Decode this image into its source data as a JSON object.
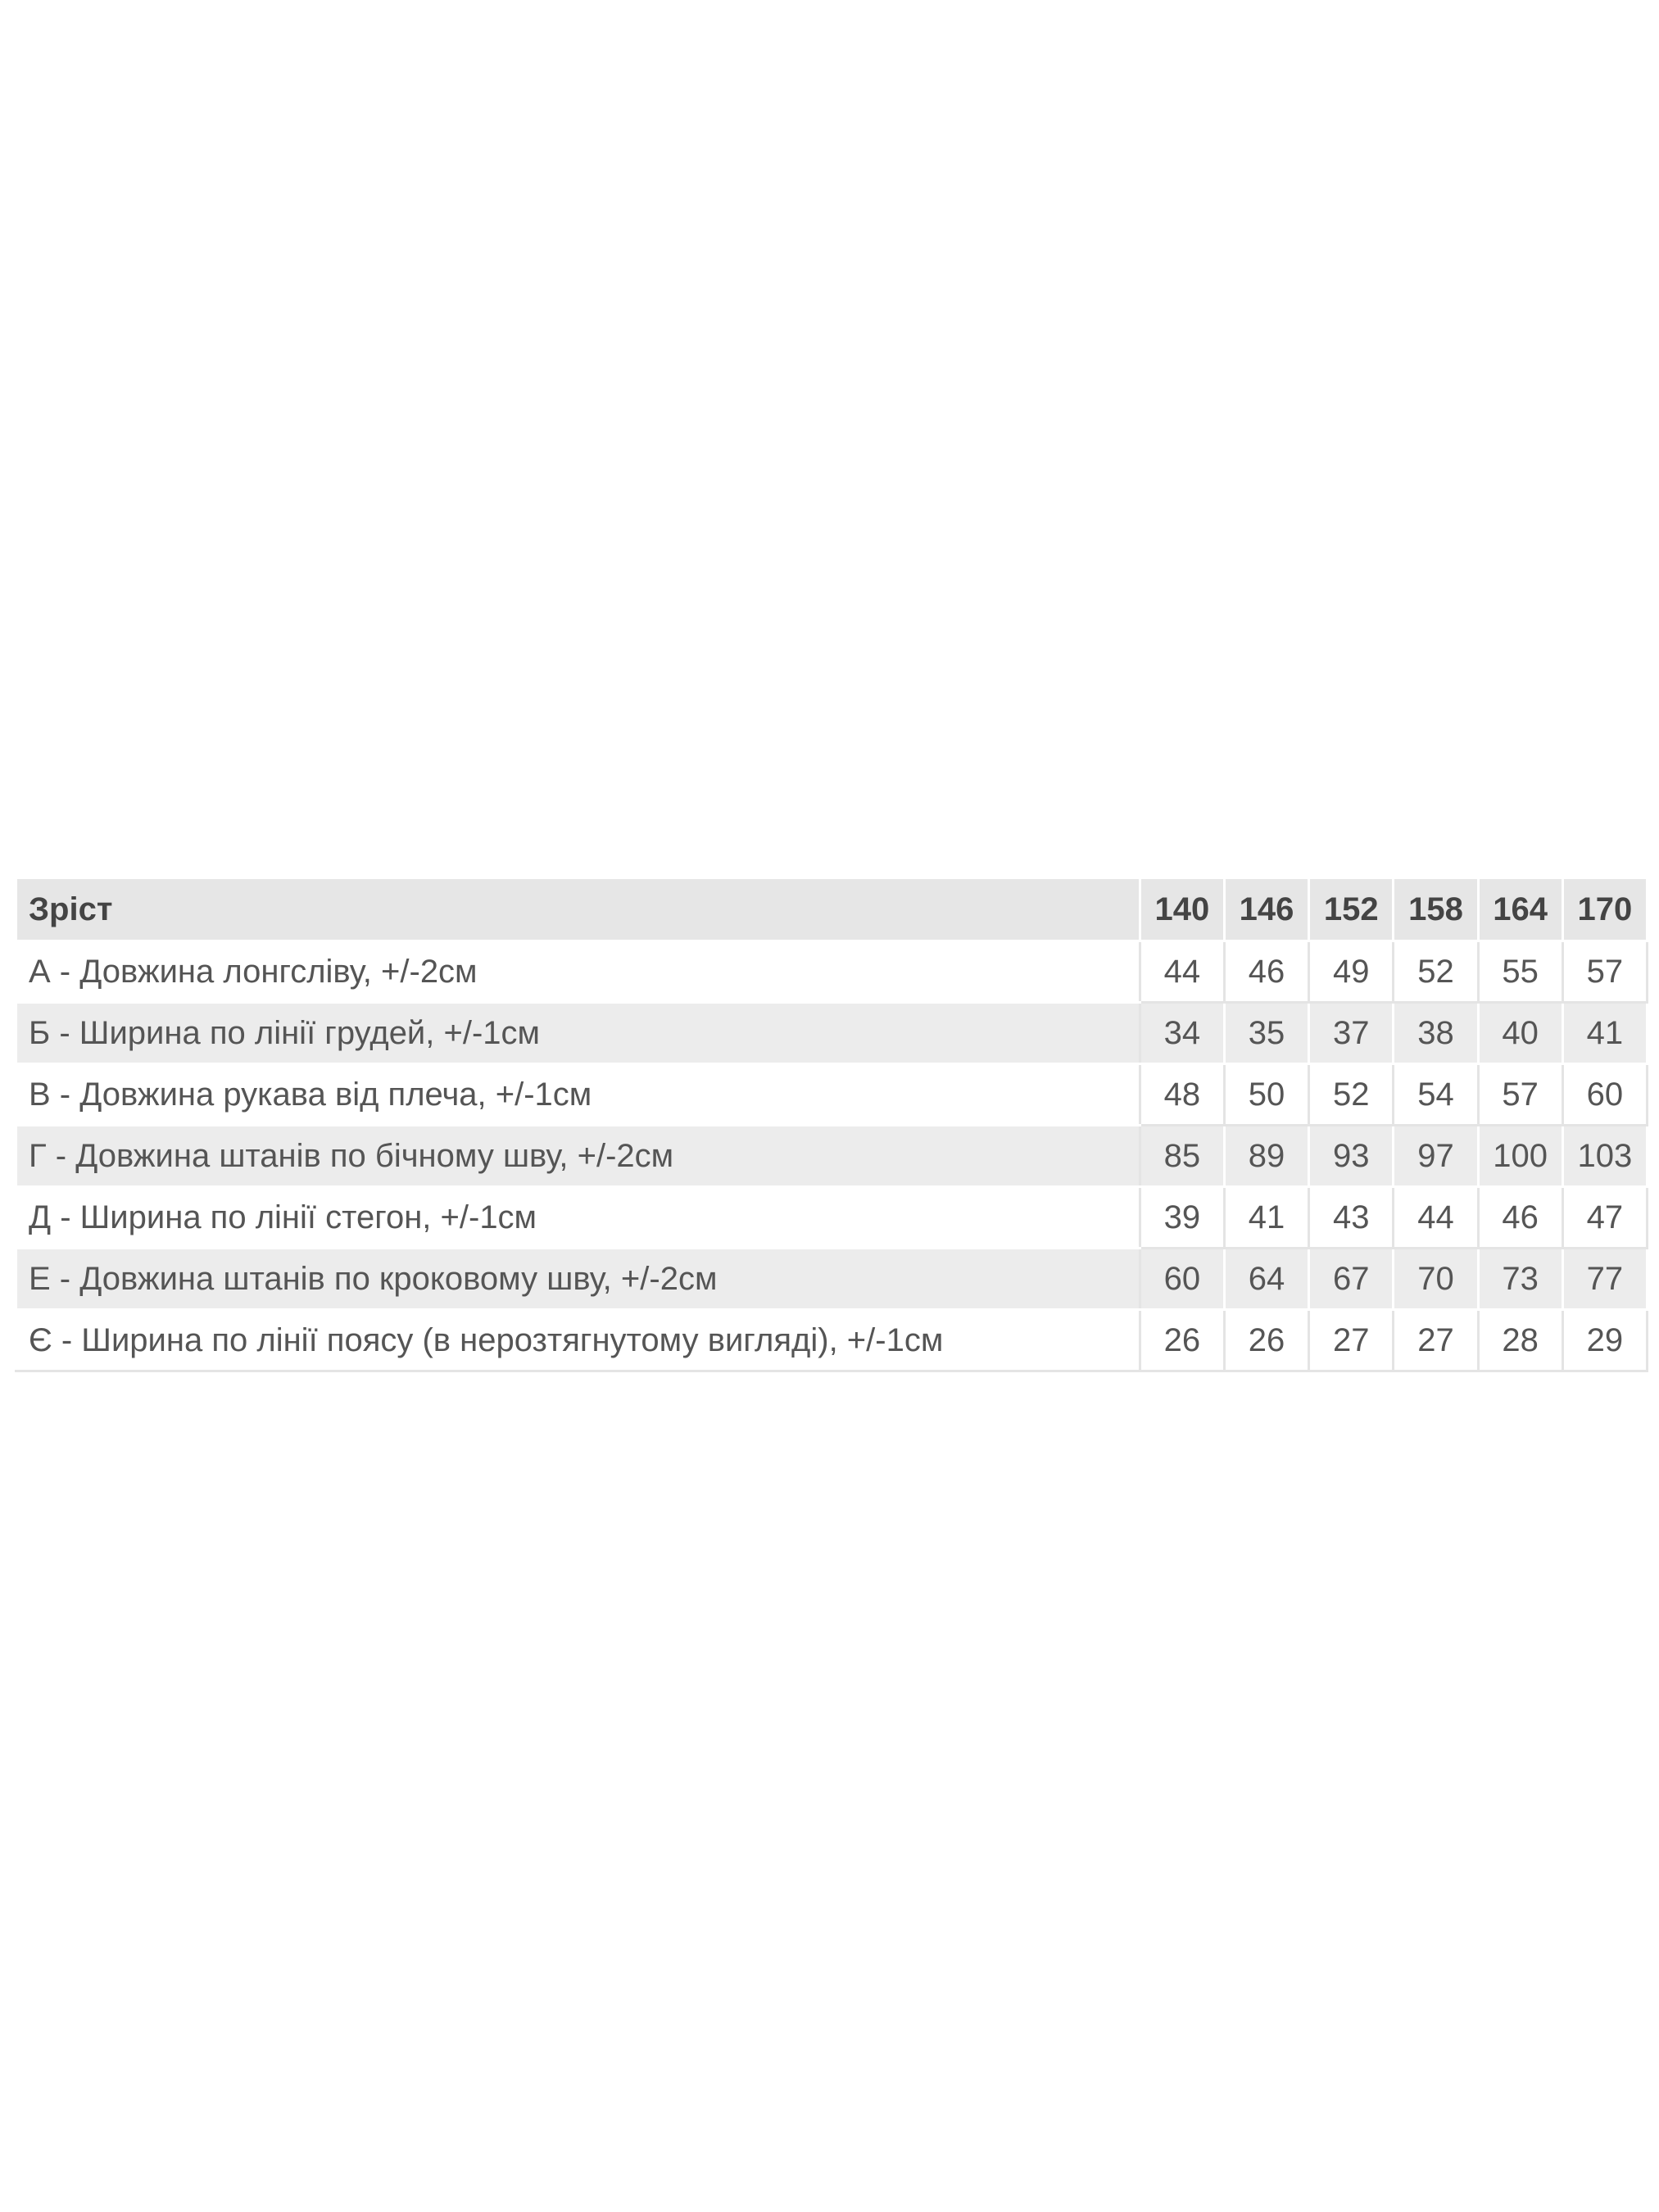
{
  "table": {
    "header": {
      "label": "Зріст",
      "sizes": [
        "140",
        "146",
        "152",
        "158",
        "164",
        "170"
      ]
    },
    "rows": [
      {
        "label": "А - Довжина лонгсліву, +/-2см",
        "values": [
          "44",
          "46",
          "49",
          "52",
          "55",
          "57"
        ]
      },
      {
        "label": "Б - Ширина по лінії грудей, +/-1см",
        "values": [
          "34",
          "35",
          "37",
          "38",
          "40",
          "41"
        ]
      },
      {
        "label": "В - Довжина рукава від плеча, +/-1см",
        "values": [
          "48",
          "50",
          "52",
          "54",
          "57",
          "60"
        ]
      },
      {
        "label": "Г - Довжина штанів по бічному шву, +/-2см",
        "values": [
          "85",
          "89",
          "93",
          "97",
          "100",
          "103"
        ]
      },
      {
        "label": "Д - Ширина по лінії стегон, +/-1см",
        "values": [
          "39",
          "41",
          "43",
          "44",
          "46",
          "47"
        ]
      },
      {
        "label": "Е - Довжина штанів по кроковому шву, +/-2см",
        "values": [
          "60",
          "64",
          "67",
          "70",
          "73",
          "77"
        ]
      },
      {
        "label": "Є - Ширина по лінії поясу (в нерозтягнутому вигляді), +/-1см",
        "values": [
          "26",
          "26",
          "27",
          "27",
          "28",
          "29"
        ]
      }
    ]
  }
}
